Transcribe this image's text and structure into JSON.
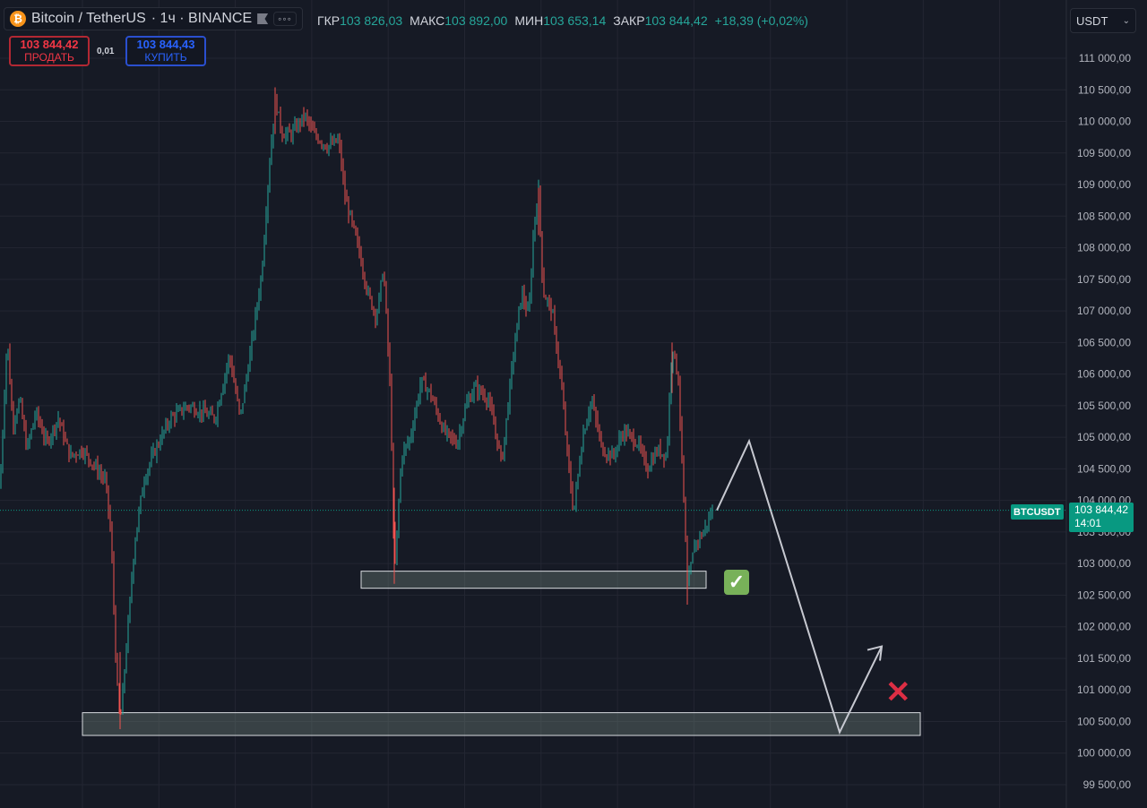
{
  "header": {
    "symbol_name": "Bitcoin / TetherUS",
    "interval_exchange": "· 1ч · BINANCE",
    "more_label": "◦◦◦",
    "ohlc": [
      {
        "key": "ГКР",
        "value": "103 826,03"
      },
      {
        "key": "МАКС",
        "value": "103 892,00"
      },
      {
        "key": "МИН",
        "value": "103 653,14"
      },
      {
        "key": "ЗАКР",
        "value": "103 844,42"
      }
    ],
    "change": "+18,39 (+0,02%)"
  },
  "trade": {
    "sell_price": "103 844,42",
    "sell_label": "ПРОДАТЬ",
    "spread": "0,01",
    "buy_price": "103 844,43",
    "buy_label": "КУПИТЬ"
  },
  "currency_select": {
    "value": "USDT"
  },
  "price_marker": {
    "symbol": "BTCUSDT",
    "price": "103 844,42",
    "countdown": "14:01"
  },
  "colors": {
    "up": "#26a69a",
    "down": "#ef5350",
    "background": "#161a25",
    "accent": "#089981"
  },
  "icons": {
    "check": "✓",
    "cross": "✕"
  },
  "chart_data": {
    "type": "candlestick",
    "y_axis_labels": [
      "111 000,00",
      "110 500,00",
      "110 000,00",
      "109 500,00",
      "109 000,00",
      "108 500,00",
      "108 000,00",
      "107 500,00",
      "107 000,00",
      "106 500,00",
      "106 000,00",
      "105 500,00",
      "105 000,00",
      "104 500,00",
      "104 000,00",
      "103 500,00",
      "103 000,00",
      "102 500,00",
      "102 000,00",
      "101 500,00",
      "101 000,00",
      "100 500,00",
      "100 000,00",
      "99 500,00"
    ],
    "ylim": [
      99400,
      111300
    ],
    "y_ticks": [
      111000,
      110500,
      110000,
      109500,
      109000,
      108500,
      108000,
      107500,
      107000,
      106500,
      106000,
      105500,
      105000,
      104500,
      104000,
      103500,
      103000,
      102500,
      102000,
      101500,
      101000,
      100500,
      100000,
      99500
    ],
    "grid": true,
    "last_price": 103844.42,
    "price_waypoints": [
      [
        0,
        104200
      ],
      [
        8,
        106600
      ],
      [
        14,
        105200
      ],
      [
        22,
        105600
      ],
      [
        30,
        104800
      ],
      [
        40,
        105400
      ],
      [
        52,
        104900
      ],
      [
        65,
        105300
      ],
      [
        78,
        104700
      ],
      [
        92,
        104800
      ],
      [
        108,
        104500
      ],
      [
        118,
        104300
      ],
      [
        124,
        103400
      ],
      [
        130,
        101200
      ],
      [
        134,
        100430
      ],
      [
        140,
        101500
      ],
      [
        150,
        103300
      ],
      [
        160,
        104300
      ],
      [
        170,
        104700
      ],
      [
        190,
        105300
      ],
      [
        210,
        105500
      ],
      [
        240,
        105300
      ],
      [
        256,
        106300
      ],
      [
        268,
        105300
      ],
      [
        280,
        106400
      ],
      [
        292,
        107600
      ],
      [
        300,
        109200
      ],
      [
        307,
        110350
      ],
      [
        315,
        109800
      ],
      [
        325,
        109800
      ],
      [
        340,
        110100
      ],
      [
        350,
        109800
      ],
      [
        365,
        109600
      ],
      [
        378,
        109700
      ],
      [
        385,
        108800
      ],
      [
        400,
        108000
      ],
      [
        410,
        107300
      ],
      [
        420,
        106900
      ],
      [
        428,
        107700
      ],
      [
        436,
        105600
      ],
      [
        440,
        102750
      ],
      [
        448,
        104700
      ],
      [
        458,
        105000
      ],
      [
        470,
        105900
      ],
      [
        480,
        105700
      ],
      [
        495,
        105100
      ],
      [
        510,
        104900
      ],
      [
        520,
        105500
      ],
      [
        530,
        105800
      ],
      [
        545,
        105600
      ],
      [
        560,
        104600
      ],
      [
        572,
        106200
      ],
      [
        582,
        107300
      ],
      [
        590,
        106900
      ],
      [
        596,
        108400
      ],
      [
        601,
        108900
      ],
      [
        606,
        107300
      ],
      [
        616,
        107000
      ],
      [
        626,
        105900
      ],
      [
        634,
        104600
      ],
      [
        640,
        103800
      ],
      [
        650,
        105000
      ],
      [
        660,
        105600
      ],
      [
        672,
        104800
      ],
      [
        684,
        104700
      ],
      [
        696,
        105100
      ],
      [
        712,
        104900
      ],
      [
        722,
        104500
      ],
      [
        734,
        104800
      ],
      [
        744,
        104700
      ],
      [
        750,
        106500
      ],
      [
        757,
        105900
      ],
      [
        763,
        104000
      ],
      [
        767,
        102600
      ],
      [
        775,
        103300
      ],
      [
        785,
        103500
      ],
      [
        795,
        103844
      ]
    ]
  },
  "annotations": {
    "zones": [
      {
        "name": "upper-support-zone",
        "from": 102610,
        "to": 102880
      },
      {
        "name": "lower-support-zone",
        "from": 100280,
        "to": 100640
      }
    ],
    "projection_path": [
      [
        800,
        103844
      ],
      [
        836,
        104940
      ],
      [
        937,
        100330
      ],
      [
        984,
        101690
      ]
    ]
  }
}
